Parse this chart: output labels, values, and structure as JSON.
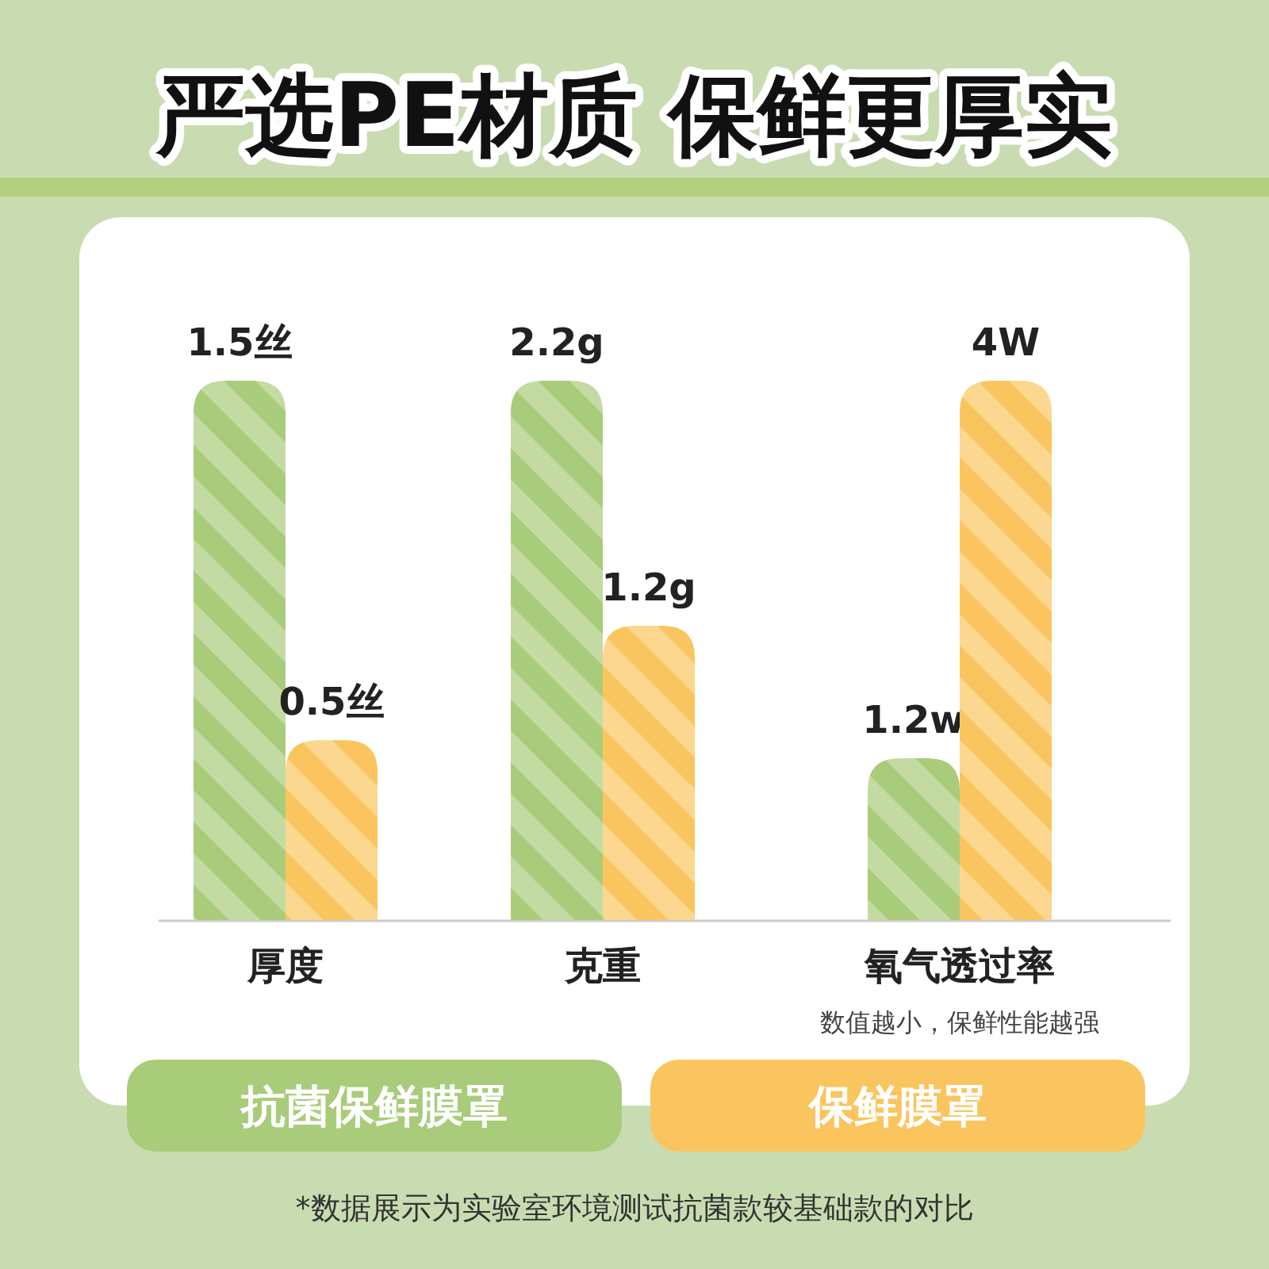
{
  "chart_data": [
    {
      "type": "bar",
      "title": "严选PE材质 保鲜更厚实",
      "categories": [
        "厚度"
      ],
      "series": [
        {
          "name": "抗菌保鲜膜罩",
          "color": "#a9cc7a",
          "values": [
            1.5
          ],
          "value_labels": [
            "1.5丝"
          ]
        },
        {
          "name": "保鲜膜罩",
          "color": "#fac55e",
          "values": [
            0.5
          ],
          "value_labels": [
            "0.5丝"
          ]
        }
      ],
      "legend": "bottom",
      "annotations": [
        "*数据展示为实验室环境测试抗菌款较基础款的对比"
      ]
    },
    {
      "type": "bar",
      "categories": [
        "克重"
      ],
      "series": [
        {
          "color": "#a9cc7a",
          "values": [
            2.2
          ],
          "value_labels": [
            "2.2g"
          ]
        },
        {
          "color": "#fac55e",
          "values": [
            1.2
          ],
          "value_labels": [
            "1.2g"
          ]
        }
      ]
    },
    {
      "type": "bar",
      "categories": [
        "氧气透过率"
      ],
      "series": [
        {
          "color": "#a9cc7a",
          "values": [
            1.2
          ],
          "value_labels": [
            "1.2w"
          ]
        },
        {
          "color": "#fac55e",
          "values": [
            4
          ],
          "value_labels": [
            "4W"
          ]
        }
      ],
      "annotations": [
        "数值越小，保鲜性能越强"
      ]
    }
  ]
}
